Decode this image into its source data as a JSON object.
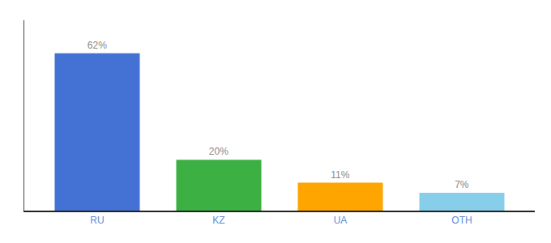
{
  "chart_data": {
    "type": "bar",
    "categories": [
      "RU",
      "KZ",
      "UA",
      "OTH"
    ],
    "values": [
      62,
      20,
      11,
      7
    ],
    "value_labels": [
      "62%",
      "20%",
      "11%",
      "7%"
    ],
    "colors": [
      "#4472d4",
      "#3cb043",
      "#ffa500",
      "#87ceeb"
    ],
    "ylim": [
      0,
      75
    ],
    "tick_labels": "x",
    "data_labels": true,
    "grid": false
  }
}
